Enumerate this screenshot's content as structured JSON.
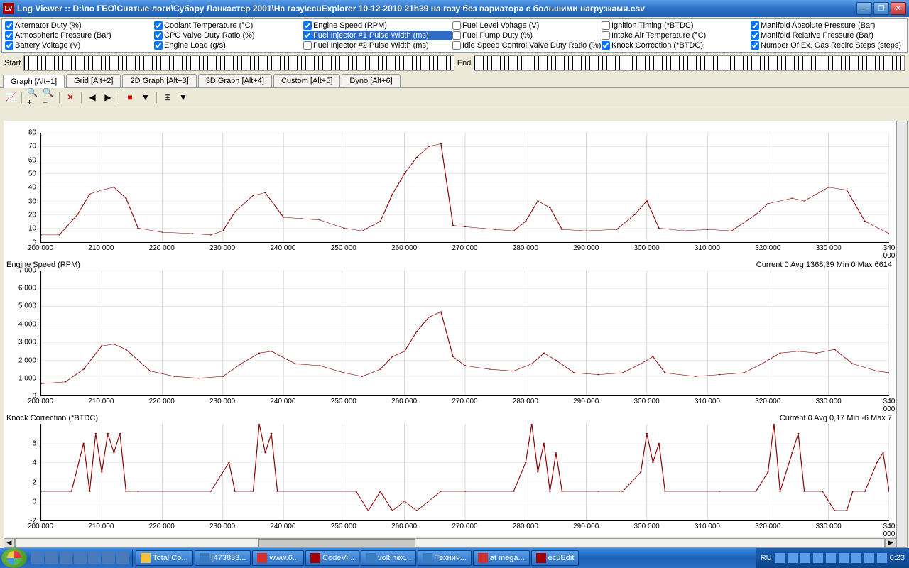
{
  "window": {
    "title": "Log Viewer :: D:\\по ГБО\\Снятые логи\\Субару Ланкастер 2001\\На газу\\ecuExplorer  10-12-2010 21h39 на газу без вариатора с большими нагрузками.csv",
    "icon_label": "LV"
  },
  "params": {
    "cols": [
      [
        {
          "label": "Alternator Duty (%)",
          "checked": true
        },
        {
          "label": "Atmospheric Pressure (Bar)",
          "checked": true
        },
        {
          "label": "Battery Voltage (V)",
          "checked": true
        }
      ],
      [
        {
          "label": "Coolant Temperature (°C)",
          "checked": true
        },
        {
          "label": "CPC Valve Duty Ratio (%)",
          "checked": true
        },
        {
          "label": "Engine Load (g/s)",
          "checked": true
        }
      ],
      [
        {
          "label": "Engine Speed (RPM)",
          "checked": true
        },
        {
          "label": "Fuel Injector #1 Pulse Width (ms)",
          "checked": true,
          "selected": true
        },
        {
          "label": "Fuel Injector #2 Pulse Width (ms)",
          "checked": false
        }
      ],
      [
        {
          "label": "Fuel Level Voltage (V)",
          "checked": false
        },
        {
          "label": "Fuel Pump Duty (%)",
          "checked": false
        },
        {
          "label": "Idle Speed Control Valve Duty Ratio (%)",
          "checked": false
        }
      ],
      [
        {
          "label": "Ignition Timing (*BTDC)",
          "checked": false
        },
        {
          "label": "Intake Air Temperature (°C)",
          "checked": false
        },
        {
          "label": "Knock Correction (*BTDC)",
          "checked": true
        }
      ],
      [
        {
          "label": "Manifold Absolute Pressure (Bar)",
          "checked": true
        },
        {
          "label": "Manifold Relative Pressure (Bar)",
          "checked": true
        },
        {
          "label": "Number Of Ex. Gas Recirc Steps (steps)",
          "checked": true
        }
      ]
    ]
  },
  "range": {
    "start_label": "Start",
    "end_label": "End"
  },
  "tabs": [
    {
      "label": "Graph [Alt+1]",
      "active": true
    },
    {
      "label": "Grid [Alt+2]"
    },
    {
      "label": "2D Graph [Alt+3]"
    },
    {
      "label": "3D Graph [Alt+4]"
    },
    {
      "label": "Custom [Alt+5]"
    },
    {
      "label": "Dyno [Alt+6]"
    }
  ],
  "toolbar": [
    {
      "name": "chart-icon",
      "glyph": "📈"
    },
    {
      "name": "sep"
    },
    {
      "name": "zoom-in-icon",
      "glyph": "🔍+"
    },
    {
      "name": "zoom-out-icon",
      "glyph": "🔍−"
    },
    {
      "name": "sep"
    },
    {
      "name": "delete-icon",
      "glyph": "✕",
      "color": "#d00"
    },
    {
      "name": "sep"
    },
    {
      "name": "prev-icon",
      "glyph": "◀"
    },
    {
      "name": "next-icon",
      "glyph": "▶"
    },
    {
      "name": "sep"
    },
    {
      "name": "color-icon",
      "glyph": "■",
      "color": "#d00"
    },
    {
      "name": "dropdown-icon",
      "glyph": "▼"
    },
    {
      "name": "sep"
    },
    {
      "name": "grid-icon",
      "glyph": "⊞"
    },
    {
      "name": "dropdown2-icon",
      "glyph": "▼"
    }
  ],
  "xaxis": {
    "min": 200000,
    "max": 340000,
    "step": 10000,
    "labels": [
      "200 000",
      "210 000",
      "220 000",
      "230 000",
      "240 000",
      "250 000",
      "260 000",
      "270 000",
      "280 000",
      "290 000",
      "300 000",
      "310 000",
      "320 000",
      "330 000",
      "340 000"
    ]
  },
  "charts": [
    {
      "title": "",
      "stats": "",
      "ymin": 0,
      "ymax": 80,
      "ystep": 10,
      "ylabels": [
        "0",
        "10",
        "20",
        "30",
        "40",
        "50",
        "60",
        "70",
        "80"
      ],
      "series_color": "#8b0000",
      "data": [
        [
          200,
          5
        ],
        [
          203,
          5
        ],
        [
          206,
          20
        ],
        [
          208,
          35
        ],
        [
          210,
          38
        ],
        [
          212,
          40
        ],
        [
          214,
          32
        ],
        [
          216,
          10
        ],
        [
          220,
          7
        ],
        [
          225,
          6
        ],
        [
          228,
          5
        ],
        [
          230,
          8
        ],
        [
          232,
          22
        ],
        [
          235,
          34
        ],
        [
          237,
          36
        ],
        [
          240,
          18
        ],
        [
          243,
          17
        ],
        [
          246,
          16
        ],
        [
          250,
          10
        ],
        [
          253,
          8
        ],
        [
          256,
          15
        ],
        [
          258,
          35
        ],
        [
          260,
          50
        ],
        [
          262,
          62
        ],
        [
          264,
          70
        ],
        [
          266,
          72
        ],
        [
          268,
          12
        ],
        [
          270,
          11
        ],
        [
          275,
          9
        ],
        [
          278,
          8
        ],
        [
          280,
          15
        ],
        [
          282,
          30
        ],
        [
          284,
          25
        ],
        [
          286,
          9
        ],
        [
          290,
          8
        ],
        [
          295,
          9
        ],
        [
          298,
          20
        ],
        [
          300,
          30
        ],
        [
          302,
          10
        ],
        [
          306,
          8
        ],
        [
          310,
          9
        ],
        [
          314,
          8
        ],
        [
          318,
          20
        ],
        [
          320,
          28
        ],
        [
          324,
          32
        ],
        [
          326,
          30
        ],
        [
          330,
          40
        ],
        [
          333,
          38
        ],
        [
          336,
          15
        ],
        [
          340,
          6
        ]
      ]
    },
    {
      "title": "Engine Speed (RPM)",
      "stats": "Current 0 Avg 1368,39 Min 0 Max 6614",
      "ymin": 0,
      "ymax": 7000,
      "ystep": 1000,
      "ylabels": [
        "0",
        "1 000",
        "2 000",
        "3 000",
        "4 000",
        "5 000",
        "6 000",
        "7 000"
      ],
      "series_color": "#8b0000",
      "data": [
        [
          200,
          700
        ],
        [
          204,
          800
        ],
        [
          207,
          1500
        ],
        [
          210,
          2800
        ],
        [
          212,
          2900
        ],
        [
          214,
          2600
        ],
        [
          218,
          1400
        ],
        [
          222,
          1100
        ],
        [
          226,
          1000
        ],
        [
          230,
          1100
        ],
        [
          233,
          1800
        ],
        [
          236,
          2400
        ],
        [
          238,
          2500
        ],
        [
          242,
          1800
        ],
        [
          246,
          1700
        ],
        [
          250,
          1300
        ],
        [
          253,
          1100
        ],
        [
          256,
          1500
        ],
        [
          258,
          2200
        ],
        [
          260,
          2500
        ],
        [
          262,
          3600
        ],
        [
          264,
          4400
        ],
        [
          266,
          4700
        ],
        [
          268,
          2200
        ],
        [
          270,
          1700
        ],
        [
          274,
          1500
        ],
        [
          278,
          1400
        ],
        [
          281,
          1800
        ],
        [
          283,
          2400
        ],
        [
          285,
          2000
        ],
        [
          288,
          1300
        ],
        [
          292,
          1200
        ],
        [
          296,
          1300
        ],
        [
          299,
          1800
        ],
        [
          301,
          2200
        ],
        [
          303,
          1300
        ],
        [
          308,
          1100
        ],
        [
          312,
          1200
        ],
        [
          316,
          1300
        ],
        [
          319,
          1800
        ],
        [
          322,
          2400
        ],
        [
          325,
          2500
        ],
        [
          328,
          2400
        ],
        [
          331,
          2600
        ],
        [
          334,
          1800
        ],
        [
          338,
          1400
        ],
        [
          340,
          1300
        ]
      ]
    },
    {
      "title": "Knock Correction (*BTDC)",
      "stats": "Current 0 Avg 0,17 Min -6 Max 7",
      "ymin": -3,
      "ymax": 7,
      "ystep": 2,
      "ylabels": [
        "-2",
        "0",
        "2",
        "4",
        "6"
      ],
      "series_color": "#c00",
      "data": [
        [
          200,
          0
        ],
        [
          205,
          0
        ],
        [
          207,
          5
        ],
        [
          208,
          0
        ],
        [
          209,
          6
        ],
        [
          210,
          2
        ],
        [
          211,
          6
        ],
        [
          212,
          4
        ],
        [
          213,
          6
        ],
        [
          214,
          0
        ],
        [
          216,
          0
        ],
        [
          228,
          0
        ],
        [
          231,
          3
        ],
        [
          232,
          0
        ],
        [
          235,
          0
        ],
        [
          236,
          7
        ],
        [
          237,
          4
        ],
        [
          238,
          6
        ],
        [
          239,
          0
        ],
        [
          252,
          0
        ],
        [
          254,
          -2
        ],
        [
          256,
          0
        ],
        [
          258,
          -2
        ],
        [
          260,
          -1
        ],
        [
          262,
          -2
        ],
        [
          264,
          -1
        ],
        [
          266,
          0
        ],
        [
          270,
          0
        ],
        [
          278,
          0
        ],
        [
          280,
          3
        ],
        [
          281,
          7
        ],
        [
          282,
          2
        ],
        [
          283,
          5
        ],
        [
          284,
          0
        ],
        [
          285,
          4
        ],
        [
          286,
          0
        ],
        [
          292,
          0
        ],
        [
          296,
          0
        ],
        [
          299,
          2
        ],
        [
          300,
          6
        ],
        [
          301,
          3
        ],
        [
          302,
          5
        ],
        [
          303,
          0
        ],
        [
          312,
          0
        ],
        [
          318,
          0
        ],
        [
          320,
          2
        ],
        [
          321,
          7
        ],
        [
          322,
          0
        ],
        [
          324,
          4
        ],
        [
          325,
          6
        ],
        [
          326,
          0
        ],
        [
          329,
          0
        ],
        [
          331,
          -2
        ],
        [
          333,
          -2
        ],
        [
          334,
          0
        ],
        [
          336,
          0
        ],
        [
          338,
          3
        ],
        [
          339,
          4
        ],
        [
          340,
          0
        ]
      ]
    }
  ],
  "taskbar": {
    "quick": [
      "ie",
      "desktop",
      "save",
      "media",
      "opera",
      "app1",
      "app2"
    ],
    "tasks": [
      {
        "label": "Total Co...",
        "color": "#f0c040"
      },
      {
        "label": "[473833...",
        "color": "#3a7ac0"
      },
      {
        "label": "www.6...",
        "color": "#d03030"
      },
      {
        "label": "CodeVi...",
        "color": "#a00000"
      },
      {
        "label": "volt.hex...",
        "color": "#3a7ac0"
      },
      {
        "label": "Технич...",
        "color": "#3a7ac0"
      },
      {
        "label": "at mega...",
        "color": "#d03030"
      },
      {
        "label": "ecuEdit",
        "color": "#a00000"
      }
    ],
    "lang": "RU",
    "time": "0:23",
    "tray_icons": 9
  }
}
